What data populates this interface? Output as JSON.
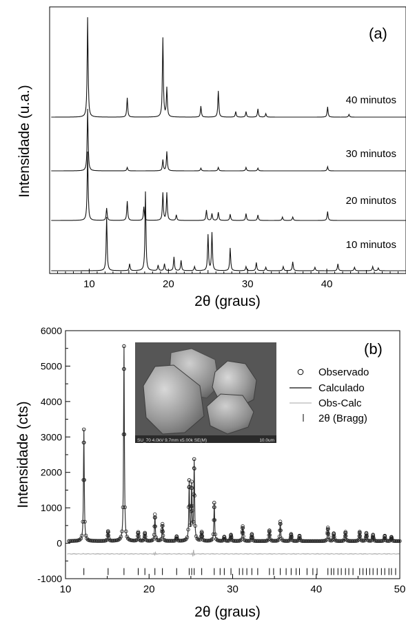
{
  "chart_data": [
    {
      "panel_label": "(a)",
      "type": "line",
      "xlabel": "2θ (graus)",
      "ylabel": "Intensidade (u.a.)",
      "xlim": [
        5,
        50
      ],
      "xticks": [
        10,
        20,
        30,
        40
      ],
      "series": [
        {
          "name": "40 minutos",
          "peaks": [
            [
              9.8,
              145
            ],
            [
              14.8,
              28
            ],
            [
              19.3,
              115
            ],
            [
              19.8,
              42
            ],
            [
              24.1,
              16
            ],
            [
              26.3,
              38
            ],
            [
              28.5,
              8
            ],
            [
              29.8,
              8
            ],
            [
              31.3,
              12
            ],
            [
              32.3,
              5
            ],
            [
              40.1,
              15
            ],
            [
              42.8,
              4
            ]
          ]
        },
        {
          "name": "30 minutos",
          "peaks": [
            [
              9.8,
              90
            ],
            [
              14.8,
              5
            ],
            [
              19.3,
              16
            ],
            [
              19.8,
              28
            ],
            [
              24.1,
              4
            ],
            [
              26.3,
              5
            ],
            [
              29.8,
              5
            ],
            [
              31.3,
              4
            ],
            [
              40.1,
              6
            ]
          ]
        },
        {
          "name": "20 minutos",
          "peaks": [
            [
              9.8,
              100
            ],
            [
              12.2,
              18
            ],
            [
              14.8,
              28
            ],
            [
              16.9,
              20
            ],
            [
              19.3,
              40
            ],
            [
              19.8,
              40
            ],
            [
              21.0,
              8
            ],
            [
              24.8,
              15
            ],
            [
              25.5,
              10
            ],
            [
              26.3,
              12
            ],
            [
              27.8,
              9
            ],
            [
              29.8,
              10
            ],
            [
              31.3,
              8
            ],
            [
              34.4,
              5
            ],
            [
              35.7,
              5
            ],
            [
              40.1,
              13
            ]
          ]
        },
        {
          "name": "10 minutos",
          "peaks": [
            [
              12.2,
              78
            ],
            [
              15.1,
              10
            ],
            [
              17.1,
              115
            ],
            [
              18.7,
              8
            ],
            [
              19.5,
              10
            ],
            [
              20.7,
              20
            ],
            [
              21.6,
              15
            ],
            [
              23.3,
              6
            ],
            [
              25.0,
              52
            ],
            [
              25.5,
              55
            ],
            [
              27.8,
              33
            ],
            [
              29.8,
              6
            ],
            [
              31.1,
              12
            ],
            [
              32.3,
              5
            ],
            [
              34.5,
              6
            ],
            [
              35.7,
              13
            ],
            [
              38.5,
              5
            ],
            [
              41.4,
              10
            ],
            [
              43.5,
              5
            ],
            [
              45.8,
              6
            ],
            [
              46.5,
              4
            ]
          ]
        }
      ]
    },
    {
      "panel_label": "(b)",
      "type": "line",
      "xlabel": "2θ (graus)",
      "ylabel": "Intensidade (cts)",
      "xlim": [
        10,
        50
      ],
      "ylim": [
        -1000,
        6000
      ],
      "xticks": [
        10,
        20,
        30,
        40,
        50
      ],
      "yticks": [
        -1000,
        0,
        1000,
        2000,
        3000,
        4000,
        5000,
        6000
      ],
      "legend": {
        "position": "top-right",
        "entries": [
          "Observado",
          "Calculado",
          "Obs-Calc",
          "2θ (Bragg)"
        ]
      },
      "inset_caption": "SU_70 4.0kV 9.7mm x5.00k SE(M)",
      "inset_scale": "10.0um",
      "peaks": [
        [
          12.2,
          3150
        ],
        [
          15.1,
          280
        ],
        [
          17.0,
          5500
        ],
        [
          18.7,
          250
        ],
        [
          19.5,
          230
        ],
        [
          20.7,
          750
        ],
        [
          21.6,
          480
        ],
        [
          23.3,
          130
        ],
        [
          24.8,
          1650
        ],
        [
          25.1,
          1550
        ],
        [
          25.4,
          2250
        ],
        [
          26.3,
          250
        ],
        [
          27.8,
          1080
        ],
        [
          29.0,
          120
        ],
        [
          29.8,
          180
        ],
        [
          31.2,
          420
        ],
        [
          32.3,
          200
        ],
        [
          34.4,
          300
        ],
        [
          35.7,
          550
        ],
        [
          37.0,
          200
        ],
        [
          38.0,
          150
        ],
        [
          41.4,
          380
        ],
        [
          42.1,
          220
        ],
        [
          43.5,
          260
        ],
        [
          45.2,
          260
        ],
        [
          46.0,
          230
        ],
        [
          46.8,
          180
        ],
        [
          48.2,
          150
        ],
        [
          49.0,
          120
        ]
      ],
      "bragg_ticks_y": -800,
      "residual_offset": -300
    }
  ]
}
